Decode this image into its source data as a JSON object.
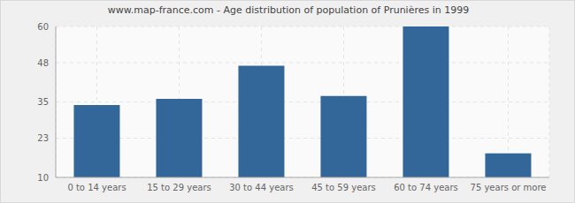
{
  "chart_data": {
    "type": "bar",
    "title": "www.map-france.com - Age distribution of population of Prunières in 1999",
    "categories": [
      "0 to 14 years",
      "15 to 29 years",
      "30 to 44 years",
      "45 to 59 years",
      "60 to 74 years",
      "75 years or more"
    ],
    "values": [
      34,
      36,
      47,
      37,
      60,
      18
    ],
    "color": "#336699",
    "ylim": [
      10,
      60
    ],
    "yticks": [
      10,
      23,
      35,
      48,
      60
    ],
    "grid": true
  }
}
